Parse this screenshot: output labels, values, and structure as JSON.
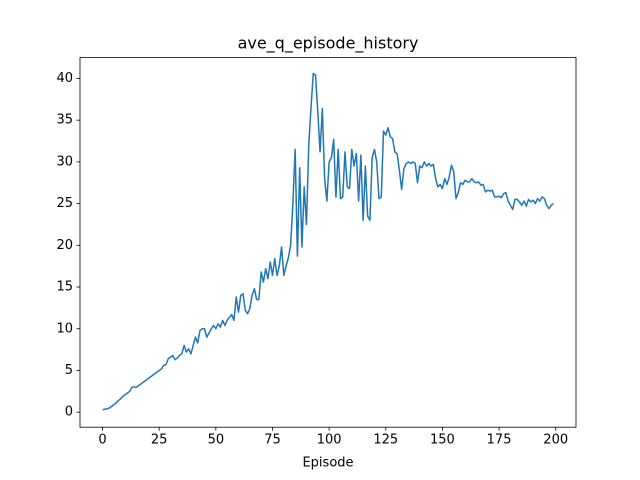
{
  "chart_data": {
    "type": "line",
    "title": "ave_q_episode_history",
    "x_label": "Episode",
    "color": "#1f77b4",
    "x": [
      0,
      1,
      2,
      3,
      4,
      5,
      6,
      7,
      8,
      9,
      10,
      11,
      12,
      13,
      14,
      15,
      16,
      17,
      18,
      19,
      20,
      21,
      22,
      23,
      24,
      25,
      26,
      27,
      28,
      29,
      30,
      31,
      32,
      33,
      34,
      35,
      36,
      37,
      38,
      39,
      40,
      41,
      42,
      43,
      44,
      45,
      46,
      47,
      48,
      49,
      50,
      51,
      52,
      53,
      54,
      55,
      56,
      57,
      58,
      59,
      60,
      61,
      62,
      63,
      64,
      65,
      66,
      67,
      68,
      69,
      70,
      71,
      72,
      73,
      74,
      75,
      76,
      77,
      78,
      79,
      80,
      81,
      82,
      83,
      84,
      85,
      86,
      87,
      88,
      89,
      90,
      91,
      92,
      93,
      94,
      95,
      96,
      97,
      98,
      99,
      100,
      101,
      102,
      103,
      104,
      105,
      106,
      107,
      108,
      109,
      110,
      111,
      112,
      113,
      114,
      115,
      116,
      117,
      118,
      119,
      120,
      121,
      122,
      123,
      124,
      125,
      126,
      127,
      128,
      129,
      130,
      131,
      132,
      133,
      134,
      135,
      136,
      137,
      138,
      139,
      140,
      141,
      142,
      143,
      144,
      145,
      146,
      147,
      148,
      149,
      150,
      151,
      152,
      153,
      154,
      155,
      156,
      157,
      158,
      159,
      160,
      161,
      162,
      163,
      164,
      165,
      166,
      167,
      168,
      169,
      170,
      171,
      172,
      173,
      174,
      175,
      176,
      177,
      178,
      179,
      180,
      181,
      182,
      183,
      184,
      185,
      186,
      187,
      188,
      189,
      190,
      191,
      192,
      193,
      194,
      195,
      196,
      197,
      198,
      199
    ],
    "values": [
      0.3,
      0.35,
      0.4,
      0.5,
      0.7,
      0.9,
      1.1,
      1.4,
      1.6,
      1.9,
      2.1,
      2.3,
      2.5,
      3.0,
      3.0,
      3.0,
      3.2,
      3.4,
      3.6,
      3.8,
      4.0,
      4.2,
      4.4,
      4.6,
      4.8,
      5.0,
      5.2,
      5.6,
      5.7,
      6.4,
      6.6,
      6.8,
      6.3,
      6.5,
      6.8,
      7.0,
      8.0,
      7.2,
      7.6,
      7.0,
      8.0,
      9.0,
      8.3,
      9.8,
      10.0,
      10.0,
      9.0,
      9.5,
      10.0,
      10.4,
      10.0,
      10.6,
      10.2,
      11.0,
      10.4,
      11.0,
      11.4,
      11.7,
      11.0,
      13.8,
      12.0,
      14.0,
      14.2,
      12.2,
      11.8,
      12.4,
      14.0,
      14.8,
      13.5,
      13.5,
      16.8,
      15.6,
      17.2,
      16.0,
      18.0,
      16.4,
      18.4,
      16.4,
      17.5,
      19.8,
      16.4,
      17.5,
      18.5,
      20.0,
      25.0,
      31.5,
      18.7,
      29.3,
      19.8,
      27.0,
      22.5,
      32.0,
      36.5,
      40.6,
      40.4,
      36.0,
      31.2,
      36.4,
      28.0,
      25.3,
      30.0,
      30.5,
      32.7,
      25.8,
      31.5,
      25.6,
      25.8,
      31.2,
      27.0,
      26.8,
      31.5,
      29.5,
      31.0,
      25.3,
      30.8,
      23.0,
      29.5,
      23.5,
      23.0,
      30.5,
      31.5,
      30.0,
      25.6,
      25.8,
      33.7,
      33.2,
      34.1,
      33.0,
      32.8,
      31.2,
      31.0,
      29.0,
      26.7,
      29.2,
      29.8,
      30.0,
      29.8,
      30.0,
      29.8,
      27.5,
      29.5,
      29.3,
      30.0,
      29.5,
      29.8,
      29.5,
      29.7,
      28.0,
      27.0,
      27.3,
      26.8,
      28.0,
      27.3,
      28.2,
      29.6,
      28.8,
      25.6,
      26.3,
      27.5,
      27.3,
      27.8,
      27.6,
      27.6,
      28.0,
      27.6,
      27.5,
      27.6,
      27.2,
      27.3,
      26.4,
      26.6,
      26.5,
      26.6,
      25.8,
      25.8,
      25.9,
      25.7,
      26.2,
      26.3,
      25.3,
      24.8,
      24.3,
      25.5,
      25.5,
      25.2,
      24.8,
      25.3,
      24.7,
      25.5,
      25.2,
      25.4,
      25.0,
      25.6,
      25.3,
      25.8,
      25.6,
      24.8,
      24.4,
      24.8,
      25.0
    ],
    "xlim": [
      -9.95,
      208.95
    ],
    "xticks": [
      0,
      25,
      50,
      75,
      100,
      125,
      150,
      175,
      200
    ],
    "ylim": [
      -1.8,
      42.5
    ],
    "yticks": [
      0,
      5,
      10,
      15,
      20,
      25,
      30,
      35,
      40
    ]
  }
}
